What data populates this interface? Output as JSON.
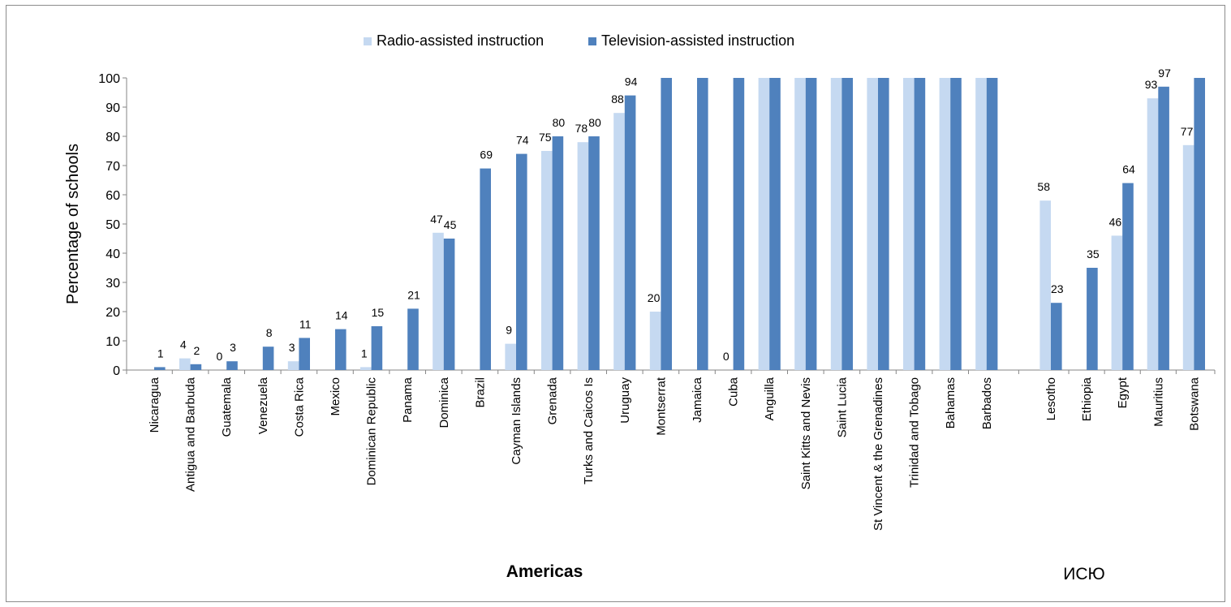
{
  "chart_data": {
    "type": "bar",
    "ylabel": "Percentage of schools",
    "ylim": [
      0,
      100
    ],
    "yticks": [
      0,
      10,
      20,
      30,
      40,
      50,
      60,
      70,
      80,
      90,
      100
    ],
    "grid": false,
    "legend_position": "top",
    "categories": [
      "Nicaragua",
      "Antigua and Barbuda",
      "Guatemala",
      "Venezuela",
      "Costa Rica",
      "Mexico",
      "Dominican Republic",
      "Panama",
      "Dominica",
      "Brazil",
      "Cayman Islands",
      "Grenada",
      "Turks and Caicos Is",
      "Uruguay",
      "Montserrat",
      "Jamaica",
      "Cuba",
      "Anguilla",
      "Saint Kitts and Nevis",
      "Saint Lucia",
      "St Vincent & the Grenadines",
      "Trinidad and Tobago",
      "Bahamas",
      "Barbados",
      "Lesotho",
      "Ethiopia",
      "Egypt",
      "Mauritius",
      "Botswana"
    ],
    "groups": [
      {
        "label": "Americas",
        "start": 0,
        "end": 23
      },
      {
        "label": "ИСЮ",
        "start": 24,
        "end": 28
      }
    ],
    "series": [
      {
        "name": "Radio-assisted instruction",
        "color": "#c5d9f1",
        "values": [
          null,
          4,
          0,
          null,
          3,
          null,
          1,
          null,
          47,
          null,
          9,
          75,
          78,
          88,
          20,
          null,
          0,
          100,
          100,
          100,
          100,
          100,
          100,
          100,
          58,
          null,
          46,
          93,
          77
        ],
        "labels": [
          "",
          "4",
          "0",
          "",
          "3",
          "",
          "1",
          "",
          "47",
          "",
          "9",
          "75",
          "78",
          "88",
          "20",
          "",
          "0",
          "",
          "",
          "",
          "",
          "",
          "",
          "",
          "58",
          "",
          "46",
          "93",
          "77"
        ]
      },
      {
        "name": "Television-assisted instruction",
        "color": "#4f81bd",
        "values": [
          1,
          2,
          3,
          8,
          11,
          14,
          15,
          21,
          45,
          69,
          74,
          80,
          80,
          94,
          100,
          100,
          100,
          100,
          100,
          100,
          100,
          100,
          100,
          100,
          23,
          35,
          64,
          97,
          100
        ],
        "labels": [
          "1",
          "2",
          "3",
          "8",
          "11",
          "14",
          "15",
          "21",
          "45",
          "69",
          "74",
          "80",
          "80",
          "94",
          "",
          "",
          "",
          "",
          "",
          "",
          "",
          "",
          "",
          "",
          "23",
          "35",
          "64",
          "97",
          ""
        ]
      }
    ]
  }
}
